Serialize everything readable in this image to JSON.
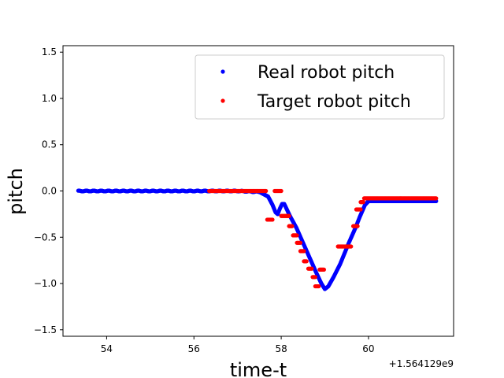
{
  "chart_data": {
    "type": "scatter",
    "title": "",
    "xlabel": "time-t",
    "ylabel": "pitch",
    "x_offset_label": "+1.564129e9",
    "xlim": [
      53.0,
      61.95
    ],
    "ylim": [
      -1.57,
      1.57
    ],
    "xticks": [
      54,
      56,
      58,
      60
    ],
    "xtick_labels": [
      "54",
      "56",
      "58",
      "60"
    ],
    "yticks": [
      -1.5,
      -1.0,
      -0.5,
      0.0,
      0.5,
      1.0,
      1.5
    ],
    "ytick_labels": [
      "−1.5",
      "−1.0",
      "−0.5",
      "0.0",
      "0.5",
      "1.0",
      "1.5"
    ],
    "grid": false,
    "legend_position": "upper-right",
    "series": [
      {
        "name": "Real robot pitch",
        "color": "#0000ff",
        "curve": [
          [
            53.35,
            0.0
          ],
          [
            54.0,
            0.0
          ],
          [
            55.0,
            0.0
          ],
          [
            56.0,
            0.0
          ],
          [
            57.0,
            0.0
          ],
          [
            57.5,
            -0.01
          ],
          [
            57.7,
            -0.06
          ],
          [
            57.8,
            -0.15
          ],
          [
            57.87,
            -0.23
          ],
          [
            57.92,
            -0.25
          ],
          [
            57.97,
            -0.19
          ],
          [
            58.02,
            -0.14
          ],
          [
            58.07,
            -0.14
          ],
          [
            58.12,
            -0.19
          ],
          [
            58.2,
            -0.27
          ],
          [
            58.35,
            -0.4
          ],
          [
            58.5,
            -0.56
          ],
          [
            58.65,
            -0.72
          ],
          [
            58.8,
            -0.88
          ],
          [
            58.92,
            -1.0
          ],
          [
            59.0,
            -1.06
          ],
          [
            59.08,
            -1.03
          ],
          [
            59.2,
            -0.93
          ],
          [
            59.35,
            -0.79
          ],
          [
            59.55,
            -0.56
          ],
          [
            59.7,
            -0.4
          ],
          [
            59.8,
            -0.28
          ],
          [
            59.92,
            -0.15
          ],
          [
            60.0,
            -0.11
          ],
          [
            60.3,
            -0.11
          ],
          [
            61.0,
            -0.11
          ],
          [
            61.55,
            -0.11
          ]
        ]
      },
      {
        "name": "Target robot pitch",
        "color": "#ff0000",
        "segments": [
          [
            56.35,
            57.65,
            0.0
          ],
          [
            57.68,
            57.8,
            -0.31
          ],
          [
            57.85,
            58.0,
            0.0
          ],
          [
            58.0,
            58.18,
            -0.27
          ],
          [
            58.18,
            58.25,
            -0.38
          ],
          [
            58.27,
            58.36,
            -0.48
          ],
          [
            58.36,
            58.44,
            -0.56
          ],
          [
            58.44,
            58.52,
            -0.65
          ],
          [
            58.52,
            58.58,
            -0.76
          ],
          [
            58.62,
            58.7,
            -0.84
          ],
          [
            58.72,
            58.78,
            -0.93
          ],
          [
            58.78,
            58.86,
            -1.03
          ],
          [
            58.88,
            58.98,
            -0.85
          ],
          [
            59.3,
            59.6,
            -0.6
          ],
          [
            59.65,
            59.75,
            -0.38
          ],
          [
            59.72,
            59.82,
            -0.2
          ],
          [
            59.82,
            59.88,
            -0.12
          ],
          [
            59.9,
            61.55,
            -0.08
          ]
        ]
      }
    ]
  }
}
